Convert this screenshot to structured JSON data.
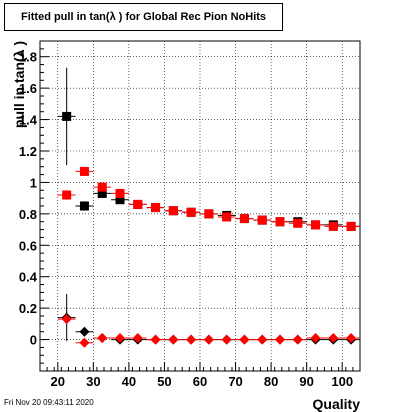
{
  "chart_data": {
    "type": "scatter",
    "title": "Fitted pull in tan(λ ) for Global Rec Pion NoHits",
    "xlabel": "Quality",
    "ylabel": "pull in tan(λ )",
    "xlim": [
      15,
      105
    ],
    "ylim": [
      -0.2,
      1.9
    ],
    "x_ticks": [
      20,
      30,
      40,
      50,
      60,
      70,
      80,
      90,
      100
    ],
    "y_ticks": [
      0,
      0.2,
      0.4,
      0.6,
      0.8,
      1,
      1.2,
      1.4,
      1.6,
      1.8
    ],
    "y_tick_labels": [
      "0",
      "0.2",
      "0.4",
      "0.6",
      "0.8",
      "1",
      "1.2",
      "1.4",
      "1.6",
      "1.8"
    ],
    "grid": true,
    "series": [
      {
        "marker": "square",
        "color": "#000000",
        "x": [
          22.5,
          27.5,
          32.5,
          37.5,
          42.5,
          47.5,
          52.5,
          57.5,
          62.5,
          67.5,
          72.5,
          77.5,
          82.5,
          87.5,
          92.5,
          97.5,
          102.5
        ],
        "y": [
          1.42,
          0.85,
          0.93,
          0.89,
          0.86,
          0.84,
          0.82,
          0.81,
          0.8,
          0.79,
          0.77,
          0.76,
          0.75,
          0.75,
          0.73,
          0.73,
          0.72
        ],
        "err": [
          0.31,
          0.03,
          0.02,
          0.01,
          0.01,
          0.01,
          0.01,
          0.01,
          0.01,
          0.01,
          0.01,
          0.01,
          0.01,
          0.01,
          0.01,
          0.01,
          0.01
        ]
      },
      {
        "marker": "square",
        "color": "#ff0000",
        "x": [
          22.5,
          27.5,
          32.5,
          37.5,
          42.5,
          47.5,
          52.5,
          57.5,
          62.5,
          67.5,
          72.5,
          77.5,
          82.5,
          87.5,
          92.5,
          97.5,
          102.5
        ],
        "y": [
          0.92,
          1.07,
          0.97,
          0.93,
          0.86,
          0.84,
          0.82,
          0.81,
          0.8,
          0.78,
          0.77,
          0.76,
          0.75,
          0.74,
          0.73,
          0.72,
          0.72
        ],
        "err": [
          0.03,
          0.02,
          0.02,
          0.01,
          0.01,
          0.01,
          0.01,
          0.01,
          0.01,
          0.01,
          0.01,
          0.01,
          0.01,
          0.01,
          0.01,
          0.01,
          0.01
        ]
      },
      {
        "marker": "diamond",
        "color": "#000000",
        "x": [
          22.5,
          27.5,
          32.5,
          37.5,
          42.5,
          47.5,
          52.5,
          57.5,
          62.5,
          67.5,
          72.5,
          77.5,
          82.5,
          87.5,
          92.5,
          97.5,
          102.5
        ],
        "y": [
          0.14,
          0.05,
          0.01,
          0.0,
          0.0,
          0.0,
          0.0,
          0.0,
          0.0,
          0.0,
          0.0,
          0.0,
          0.0,
          0.0,
          0.0,
          0.0,
          0.0
        ],
        "err": [
          0.15,
          0.03,
          0.01,
          0.01,
          0.01,
          0.01,
          0.01,
          0.01,
          0.01,
          0.01,
          0.01,
          0.01,
          0.01,
          0.01,
          0.01,
          0.01,
          0.01
        ]
      },
      {
        "marker": "diamond",
        "color": "#ff0000",
        "x": [
          22.5,
          27.5,
          32.5,
          37.5,
          42.5,
          47.5,
          52.5,
          57.5,
          62.5,
          67.5,
          72.5,
          77.5,
          82.5,
          87.5,
          92.5,
          97.5,
          102.5
        ],
        "y": [
          0.13,
          -0.02,
          0.01,
          0.01,
          0.01,
          0.0,
          0.0,
          0.0,
          0.0,
          0.0,
          0.0,
          0.0,
          0.0,
          0.0,
          0.01,
          0.01,
          0.01
        ],
        "err": [
          0.02,
          0.02,
          0.01,
          0.01,
          0.01,
          0.01,
          0.01,
          0.01,
          0.01,
          0.01,
          0.01,
          0.01,
          0.01,
          0.01,
          0.01,
          0.01,
          0.01
        ]
      }
    ]
  },
  "footer": {
    "timestamp": "Fri Nov 20 09:43:11 2020"
  }
}
